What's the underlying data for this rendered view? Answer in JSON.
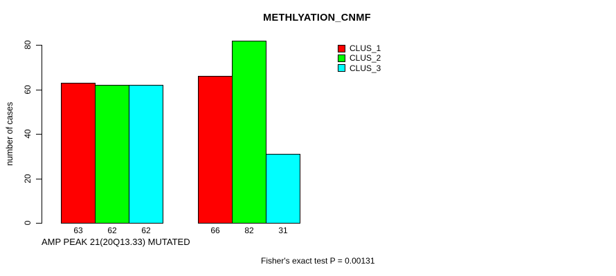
{
  "chart_data": {
    "type": "bar",
    "title": "METHLYATION_CNMF",
    "ylabel": "number of cases",
    "xlabel": "AMP PEAK 21(20Q13.33) MUTATED",
    "annotation": "Fisher's exact test P = 0.00131",
    "yticks": [
      0,
      20,
      40,
      60,
      80
    ],
    "ylim": [
      0,
      80
    ],
    "grid": false,
    "legend_position": "top-right",
    "bar_value_labels_shown": true,
    "series": [
      {
        "name": "CLUS_1",
        "color": "#ff0000",
        "values": [
          63,
          66
        ]
      },
      {
        "name": "CLUS_2",
        "color": "#00ff00",
        "values": [
          62,
          82
        ]
      },
      {
        "name": "CLUS_3",
        "color": "#00ffff",
        "values": [
          62,
          31
        ]
      }
    ]
  },
  "colors": {
    "background": "#ffffff",
    "axis": "#000000",
    "text": "#000000"
  }
}
